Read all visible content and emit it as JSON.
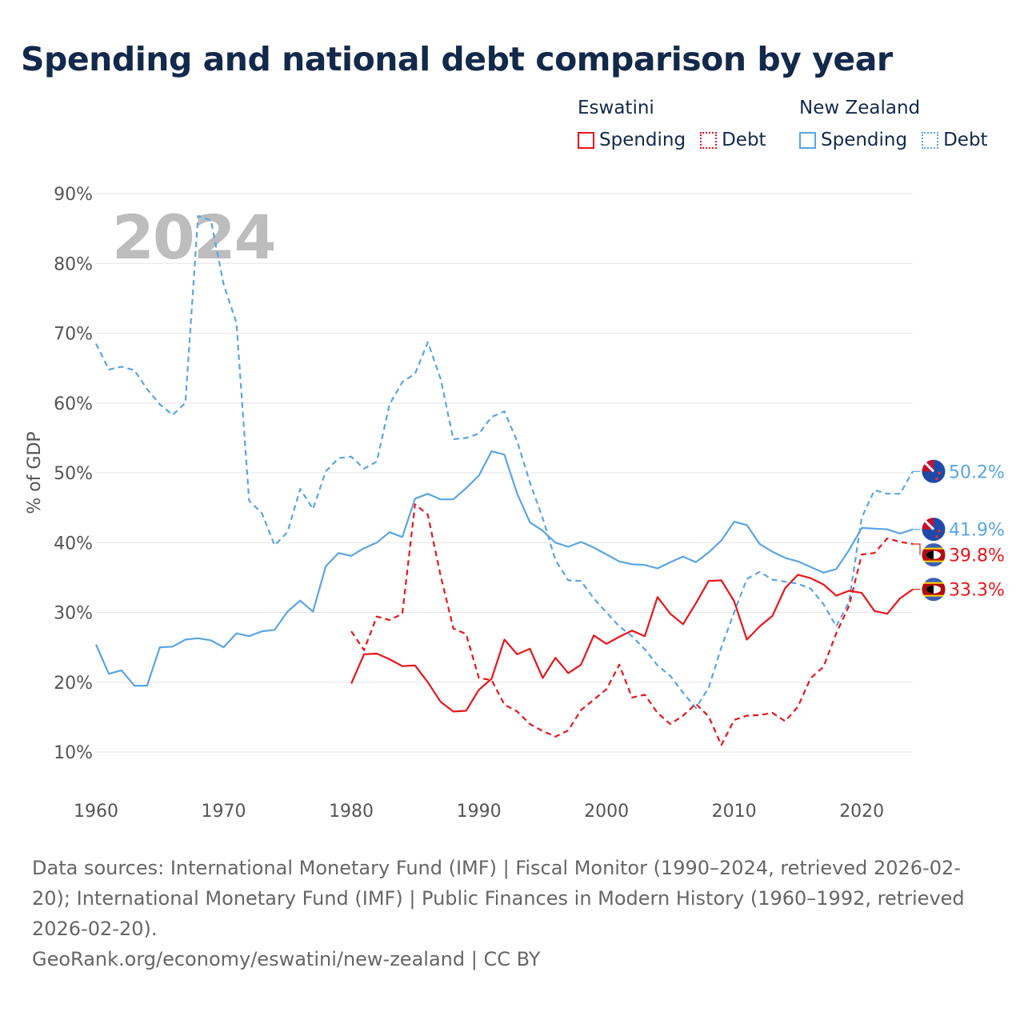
{
  "title": "Spending and national debt comparison by year",
  "year_watermark": "2024",
  "legend": {
    "groups": [
      {
        "country": "Eswatini",
        "items": [
          {
            "label": "Spending",
            "style": "solid",
            "color": "#e8161b"
          },
          {
            "label": "Debt",
            "style": "dotted",
            "color": "#e8161b"
          }
        ]
      },
      {
        "country": "New Zealand",
        "items": [
          {
            "label": "Spending",
            "style": "solid",
            "color": "#5aa5e6"
          },
          {
            "label": "Debt",
            "style": "dotted",
            "color": "#5aa5e6"
          }
        ]
      }
    ]
  },
  "colors": {
    "eswatini": "#e8161b",
    "new_zealand": "#5aa5e6",
    "grid": "#e6e6e6",
    "axis_text": "#555555",
    "title": "#13294b"
  },
  "chart_data": {
    "type": "line",
    "title": "Spending and national debt comparison by year",
    "xlabel": "",
    "ylabel": "% of GDP",
    "xlim": [
      1960,
      2024
    ],
    "ylim": [
      10,
      90
    ],
    "x_ticks": [
      1960,
      1970,
      1980,
      1990,
      2000,
      2010,
      2020
    ],
    "y_ticks": [
      10,
      20,
      30,
      40,
      50,
      60,
      70,
      80,
      90
    ],
    "y_tick_labels": [
      "10%",
      "20%",
      "30%",
      "40%",
      "50%",
      "60%",
      "70%",
      "80%",
      "90%"
    ],
    "series": [
      {
        "name": "New Zealand Debt",
        "country": "New Zealand",
        "metric": "Debt",
        "color": "#5aa5e6",
        "dash": "dashed",
        "end_label": "50.2%",
        "flag": "new-zealand",
        "x": [
          1960,
          1961,
          1962,
          1963,
          1964,
          1965,
          1966,
          1967,
          1968,
          1969,
          1970,
          1971,
          1972,
          1973,
          1974,
          1975,
          1976,
          1977,
          1978,
          1979,
          1980,
          1981,
          1982,
          1983,
          1984,
          1985,
          1986,
          1987,
          1988,
          1989,
          1990,
          1991,
          1992,
          1993,
          1994,
          1995,
          1996,
          1997,
          1998,
          1999,
          2000,
          2001,
          2002,
          2003,
          2004,
          2005,
          2006,
          2007,
          2008,
          2009,
          2010,
          2011,
          2012,
          2013,
          2014,
          2015,
          2016,
          2017,
          2018,
          2019,
          2020,
          2021,
          2022,
          2023,
          2024
        ],
        "values": [
          68.5,
          64.8,
          65.2,
          64.7,
          62.0,
          59.8,
          58.3,
          60.0,
          86.8,
          86.2,
          77.0,
          71.5,
          46.0,
          44.2,
          39.6,
          41.5,
          47.7,
          44.8,
          50.2,
          52.1,
          52.3,
          50.6,
          51.6,
          59.8,
          63.0,
          64.2,
          68.7,
          63.5,
          54.8,
          55.0,
          55.6,
          58.0,
          58.8,
          54.5,
          48.6,
          43.5,
          37.5,
          34.6,
          34.5,
          32.0,
          30.0,
          28.0,
          26.6,
          24.7,
          22.4,
          20.9,
          18.5,
          16.3,
          19.2,
          25.0,
          30.0,
          34.8,
          35.8,
          34.7,
          34.4,
          34.1,
          33.4,
          31.2,
          28.0,
          31.5,
          43.6,
          47.5,
          47.0,
          47.0,
          50.2
        ]
      },
      {
        "name": "New Zealand Spending",
        "country": "New Zealand",
        "metric": "Spending",
        "color": "#5aa5e6",
        "dash": "solid",
        "end_label": "41.9%",
        "flag": "new-zealand",
        "x": [
          1960,
          1961,
          1962,
          1963,
          1964,
          1965,
          1966,
          1967,
          1968,
          1969,
          1970,
          1971,
          1972,
          1973,
          1974,
          1975,
          1976,
          1977,
          1978,
          1979,
          1980,
          1981,
          1982,
          1983,
          1984,
          1985,
          1986,
          1987,
          1988,
          1989,
          1990,
          1991,
          1992,
          1993,
          1994,
          1995,
          1996,
          1997,
          1998,
          1999,
          2000,
          2001,
          2002,
          2003,
          2004,
          2005,
          2006,
          2007,
          2008,
          2009,
          2010,
          2011,
          2012,
          2013,
          2014,
          2015,
          2016,
          2017,
          2018,
          2019,
          2020,
          2021,
          2022,
          2023,
          2024
        ],
        "values": [
          25.4,
          21.2,
          21.7,
          19.5,
          19.5,
          25.0,
          25.1,
          26.1,
          26.3,
          26.0,
          25.0,
          27.0,
          26.6,
          27.3,
          27.5,
          30.1,
          31.7,
          30.1,
          36.6,
          38.5,
          38.1,
          39.2,
          40.0,
          41.5,
          40.8,
          46.3,
          47.0,
          46.2,
          46.2,
          47.8,
          49.6,
          53.1,
          52.6,
          47.0,
          42.9,
          41.7,
          40.0,
          39.4,
          40.1,
          39.3,
          38.3,
          37.3,
          36.9,
          36.8,
          36.3,
          37.2,
          38.0,
          37.2,
          38.6,
          40.3,
          43.0,
          42.5,
          39.8,
          38.7,
          37.8,
          37.3,
          36.5,
          35.7,
          36.2,
          38.9,
          42.1,
          42.0,
          41.9,
          41.3,
          41.9
        ]
      },
      {
        "name": "Eswatini Debt",
        "country": "Eswatini",
        "metric": "Debt",
        "color": "#e8161b",
        "dash": "dashed",
        "end_label": "39.8%",
        "flag": "eswatini",
        "x": [
          1980,
          1981,
          1982,
          1983,
          1984,
          1985,
          1986,
          1987,
          1988,
          1989,
          1990,
          1991,
          1992,
          1993,
          1994,
          1995,
          1996,
          1997,
          1998,
          1999,
          2000,
          2001,
          2002,
          2003,
          2004,
          2005,
          2006,
          2007,
          2008,
          2009,
          2010,
          2011,
          2012,
          2013,
          2014,
          2015,
          2016,
          2017,
          2018,
          2019,
          2020,
          2021,
          2022,
          2023,
          2024
        ],
        "values": [
          27.3,
          24.6,
          29.4,
          28.9,
          29.8,
          45.5,
          44.0,
          35.3,
          27.7,
          26.9,
          20.6,
          20.3,
          16.8,
          15.8,
          14.0,
          13.0,
          12.2,
          13.1,
          16.0,
          17.5,
          19.0,
          22.5,
          17.8,
          18.2,
          15.6,
          14.0,
          15.2,
          16.9,
          15.1,
          11.0,
          14.6,
          15.2,
          15.3,
          15.6,
          14.4,
          16.5,
          20.6,
          22.2,
          27.0,
          30.9,
          38.3,
          38.5,
          40.6,
          40.1,
          39.8
        ]
      },
      {
        "name": "Eswatini Spending",
        "country": "Eswatini",
        "metric": "Spending",
        "color": "#e8161b",
        "dash": "solid",
        "end_label": "33.3%",
        "flag": "eswatini",
        "x": [
          1980,
          1981,
          1982,
          1983,
          1984,
          1985,
          1986,
          1987,
          1988,
          1989,
          1990,
          1991,
          1992,
          1993,
          1994,
          1995,
          1996,
          1997,
          1998,
          1999,
          2000,
          2001,
          2002,
          2003,
          2004,
          2005,
          2006,
          2007,
          2008,
          2009,
          2010,
          2011,
          2012,
          2013,
          2014,
          2015,
          2016,
          2017,
          2018,
          2019,
          2020,
          2021,
          2022,
          2023,
          2024
        ],
        "values": [
          19.8,
          24.0,
          24.1,
          23.3,
          22.3,
          22.4,
          20.0,
          17.2,
          15.8,
          15.9,
          18.9,
          20.5,
          26.1,
          24.0,
          24.8,
          20.6,
          23.5,
          21.3,
          22.5,
          26.7,
          25.5,
          26.5,
          27.4,
          26.6,
          32.2,
          29.8,
          28.3,
          31.3,
          34.5,
          34.6,
          31.6,
          26.1,
          28.0,
          29.5,
          33.5,
          35.4,
          34.9,
          34.0,
          32.4,
          33.1,
          32.8,
          30.2,
          29.8,
          32.0,
          33.3
        ]
      }
    ]
  },
  "footer": {
    "sources": "Data sources: International Monetary Fund (IMF) | Fiscal Monitor (1990–2024, retrieved 2026-02-20); International Monetary Fund (IMF) | Public Finances in Modern History (1960–1992, retrieved 2026-02-20).",
    "credit": "GeoRank.org/economy/eswatini/new-zealand | CC BY"
  }
}
